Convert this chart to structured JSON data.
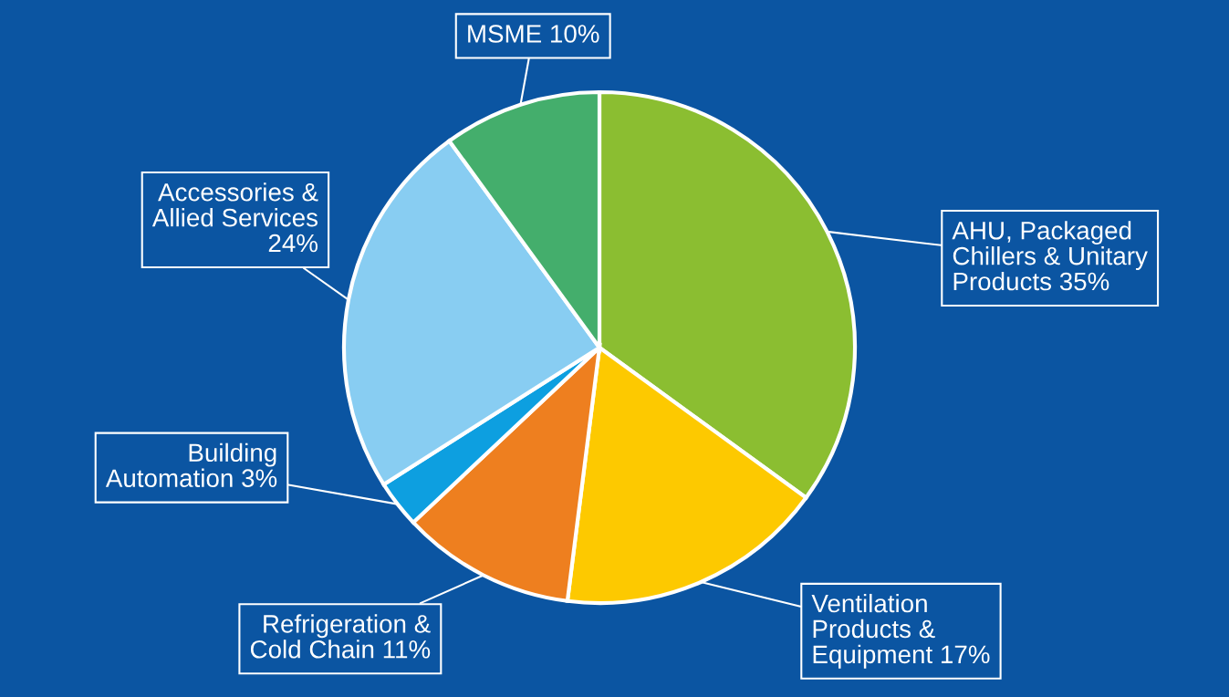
{
  "chart_data": {
    "type": "pie",
    "categories": [
      "AHU, Packaged\nChillers & Unitary\nProducts",
      "Ventilation\nProducts &\nEquipment",
      "Refrigeration &\nCold Chain",
      "Building\nAutomation",
      "Accessories &\nAllied Services\n",
      "MSME"
    ],
    "values": [
      35,
      17,
      11,
      3,
      24,
      10
    ],
    "value_labels": [
      "35%",
      "17%",
      "11%",
      "3%",
      "24%",
      "10%"
    ],
    "colors": [
      "#8bbe31",
      "#fdc900",
      "#ee7f1f",
      "#0d9fe0",
      "#88cdf2",
      "#44ae6c"
    ]
  }
}
